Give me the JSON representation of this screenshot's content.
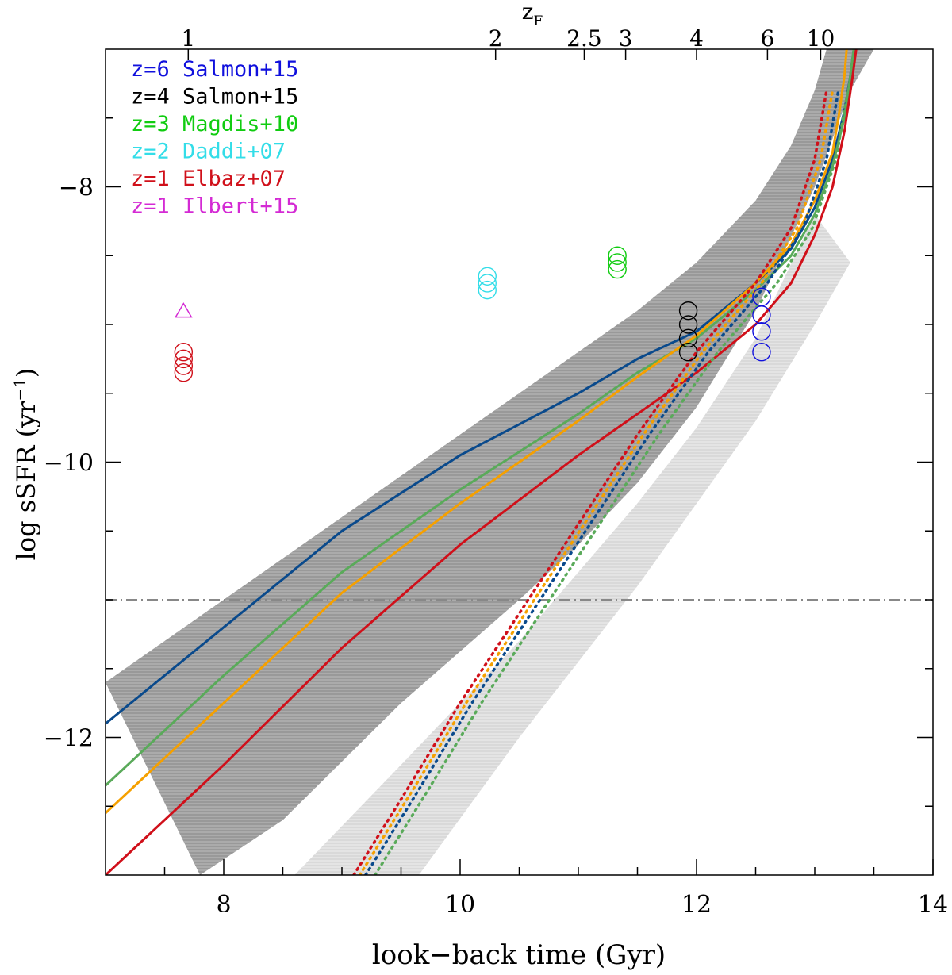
{
  "chart_data": {
    "type": "line",
    "xlabel": "look−back time (Gyr)",
    "ylabel": "log sSFR (yr",
    "ylabel_superscript": "−1",
    "ylabel_close": ")",
    "top_axis_label": "z",
    "top_axis_label_subscript": "F",
    "xlim": [
      7,
      14
    ],
    "ylim": [
      -13,
      -7
    ],
    "x_ticks": [
      8,
      10,
      12,
      14
    ],
    "x_tick_labels": [
      "8",
      "10",
      "12",
      "14"
    ],
    "x_minor_ticks": [
      7.5,
      8.5,
      9,
      9.5,
      10.5,
      11,
      11.5,
      12.5,
      13,
      13.5
    ],
    "y_ticks": [
      -8,
      -10,
      -12
    ],
    "y_tick_labels": [
      "−8",
      "−10",
      "−12"
    ],
    "y_minor_ticks": [
      -7.5,
      -8.5,
      -9,
      -9.5,
      -10.5,
      -11,
      -11.5,
      -12.5
    ],
    "top_ticks": [
      {
        "x": 7.7,
        "label": "1"
      },
      {
        "x": 10.3,
        "label": "2"
      },
      {
        "x": 11.05,
        "label": "2.5"
      },
      {
        "x": 11.4,
        "label": "3"
      },
      {
        "x": 12.0,
        "label": "4"
      },
      {
        "x": 12.6,
        "label": "6"
      },
      {
        "x": 13.05,
        "label": "10"
      }
    ],
    "hline": {
      "y": -11.0,
      "style": "dash-dot",
      "color": "#888888"
    },
    "bands": [
      {
        "name": "dark band",
        "color": "#999999",
        "upper": [
          [
            7.0,
            -11.6
          ],
          [
            8.0,
            -11.0
          ],
          [
            9.0,
            -10.4
          ],
          [
            10.0,
            -9.8
          ],
          [
            11.0,
            -9.2
          ],
          [
            11.5,
            -8.9
          ],
          [
            12.0,
            -8.55
          ],
          [
            12.5,
            -8.1
          ],
          [
            12.8,
            -7.7
          ],
          [
            13.0,
            -7.3
          ],
          [
            13.1,
            -7.0
          ]
        ],
        "lower": [
          [
            7.8,
            -13.0
          ],
          [
            8.5,
            -12.6
          ],
          [
            9.5,
            -11.75
          ],
          [
            10.5,
            -11.0
          ],
          [
            11.0,
            -10.6
          ],
          [
            11.5,
            -10.15
          ],
          [
            12.0,
            -9.6
          ],
          [
            12.5,
            -8.9
          ],
          [
            13.0,
            -8.0
          ],
          [
            13.3,
            -7.3
          ],
          [
            13.5,
            -7.0
          ]
        ]
      },
      {
        "name": "light band",
        "color": "#d9d9d9",
        "upper": [
          [
            8.6,
            -13.0
          ],
          [
            9.5,
            -12.2
          ],
          [
            10.5,
            -11.3
          ],
          [
            11.5,
            -10.3
          ],
          [
            12.0,
            -9.75
          ],
          [
            12.5,
            -9.1
          ],
          [
            13.0,
            -8.2
          ]
        ],
        "lower": [
          [
            9.65,
            -13.0
          ],
          [
            10.5,
            -12.0
          ],
          [
            11.5,
            -10.9
          ],
          [
            12.0,
            -10.3
          ],
          [
            12.5,
            -9.7
          ],
          [
            13.0,
            -9.0
          ],
          [
            13.3,
            -8.55
          ]
        ]
      }
    ],
    "series": [
      {
        "name": "z=6 Salmon+15 model",
        "color": "#0a4a8c",
        "dash": "none",
        "x": [
          7.0,
          8.0,
          9.0,
          10.0,
          11.0,
          11.5,
          12.0,
          12.5,
          12.8,
          13.0,
          13.15,
          13.25,
          13.3,
          13.33
        ],
        "y": [
          -11.9,
          -11.2,
          -10.5,
          -9.95,
          -9.5,
          -9.25,
          -9.05,
          -8.7,
          -8.45,
          -8.15,
          -7.8,
          -7.45,
          -7.2,
          -7.0
        ]
      },
      {
        "name": "z=3 Magdis+10 model",
        "color": "#5aaa5a",
        "dash": "none",
        "x": [
          7.0,
          8.0,
          9.0,
          10.0,
          11.0,
          11.5,
          12.0,
          12.5,
          12.8,
          13.0,
          13.15,
          13.25,
          13.3,
          13.33
        ],
        "y": [
          -12.35,
          -11.55,
          -10.8,
          -10.2,
          -9.65,
          -9.35,
          -9.1,
          -8.75,
          -8.5,
          -8.2,
          -7.85,
          -7.5,
          -7.2,
          -7.0
        ]
      },
      {
        "name": "orange model",
        "color": "#f5a000",
        "dash": "none",
        "x": [
          7.0,
          8.0,
          9.0,
          10.0,
          11.0,
          11.5,
          12.0,
          12.5,
          12.8,
          13.0,
          13.15,
          13.2,
          13.25,
          13.27
        ],
        "y": [
          -12.55,
          -11.75,
          -10.95,
          -10.3,
          -9.7,
          -9.38,
          -9.08,
          -8.7,
          -8.42,
          -8.1,
          -7.75,
          -7.5,
          -7.2,
          -7.0
        ]
      },
      {
        "name": "z=1 Elbaz+07 model",
        "color": "#d0101a",
        "dash": "none",
        "x": [
          7.0,
          8.0,
          9.0,
          10.0,
          11.0,
          11.5,
          12.0,
          12.5,
          12.8,
          13.0,
          13.15,
          13.25,
          13.32,
          13.35
        ],
        "y": [
          -13.0,
          -12.2,
          -11.35,
          -10.6,
          -9.95,
          -9.65,
          -9.35,
          -9.0,
          -8.7,
          -8.35,
          -8.0,
          -7.6,
          -7.2,
          -7.0
        ]
      },
      {
        "name": "red dotted",
        "color": "#d0101a",
        "dash": "dot",
        "x": [
          9.1,
          9.5,
          10.0,
          10.5,
          11.0,
          11.5,
          12.0,
          12.5,
          12.8,
          13.0,
          13.1
        ],
        "y": [
          -13.0,
          -12.45,
          -11.75,
          -11.1,
          -10.45,
          -9.8,
          -9.2,
          -8.7,
          -8.3,
          -7.8,
          -7.3
        ]
      },
      {
        "name": "orange dotted",
        "color": "#f5a000",
        "dash": "dot",
        "x": [
          9.15,
          9.55,
          10.05,
          10.55,
          11.05,
          11.55,
          12.05,
          12.55,
          12.85,
          13.05,
          13.15
        ],
        "y": [
          -13.0,
          -12.45,
          -11.75,
          -11.1,
          -10.45,
          -9.8,
          -9.2,
          -8.7,
          -8.3,
          -7.8,
          -7.3
        ]
      },
      {
        "name": "blue dotted",
        "color": "#0a4a8c",
        "dash": "dot",
        "x": [
          9.2,
          9.6,
          10.1,
          10.6,
          11.1,
          11.6,
          12.1,
          12.6,
          12.9,
          13.1,
          13.2
        ],
        "y": [
          -13.0,
          -12.45,
          -11.75,
          -11.1,
          -10.45,
          -9.8,
          -9.2,
          -8.7,
          -8.3,
          -7.8,
          -7.3
        ]
      },
      {
        "name": "green dotted",
        "color": "#5aaa5a",
        "dash": "dot",
        "x": [
          9.28,
          9.68,
          10.18,
          10.68,
          11.18,
          11.68,
          12.18,
          12.68,
          12.98,
          13.18,
          13.28
        ],
        "y": [
          -13.0,
          -12.45,
          -11.75,
          -11.1,
          -10.45,
          -9.8,
          -9.2,
          -8.7,
          -8.3,
          -7.8,
          -7.3
        ]
      }
    ],
    "points": [
      {
        "group": "z=1 Elbaz+07",
        "color": "#d0101a",
        "marker": "circle",
        "x": 7.66,
        "y": [
          -9.2,
          -9.25,
          -9.3,
          -9.35
        ]
      },
      {
        "group": "z=1 Ilbert+15",
        "color": "#d42ad4",
        "marker": "triangle",
        "x": 7.66,
        "y": [
          -8.9
        ]
      },
      {
        "group": "z=2 Daddi+07",
        "color": "#33dde8",
        "marker": "circle",
        "x": 10.23,
        "y": [
          -8.65,
          -8.7,
          -8.75
        ]
      },
      {
        "group": "z=3 Magdis+10",
        "color": "#10cc10",
        "marker": "circle",
        "x": 11.33,
        "y": [
          -8.5,
          -8.55,
          -8.6
        ]
      },
      {
        "group": "z=4 Salmon+15",
        "color": "#000000",
        "marker": "circle",
        "x": 11.93,
        "y": [
          -8.9,
          -9.0,
          -9.1,
          -9.2
        ]
      },
      {
        "group": "z=6 Salmon+15",
        "color": "#1010dd",
        "marker": "circle",
        "x": 12.55,
        "y": [
          -8.8,
          -8.93,
          -9.05,
          -9.2
        ]
      }
    ],
    "legend": {
      "placement": "top-left",
      "entries": [
        {
          "label": "z=6 Salmon+15",
          "color": "#1010dd"
        },
        {
          "label": "z=4 Salmon+15",
          "color": "#000000"
        },
        {
          "label": "z=3 Magdis+10",
          "color": "#10cc10"
        },
        {
          "label": "z=2 Daddi+07",
          "color": "#33dde8"
        },
        {
          "label": "z=1 Elbaz+07",
          "color": "#d0101a"
        },
        {
          "label": "z=1 Ilbert+15",
          "color": "#d42ad4"
        }
      ]
    }
  }
}
